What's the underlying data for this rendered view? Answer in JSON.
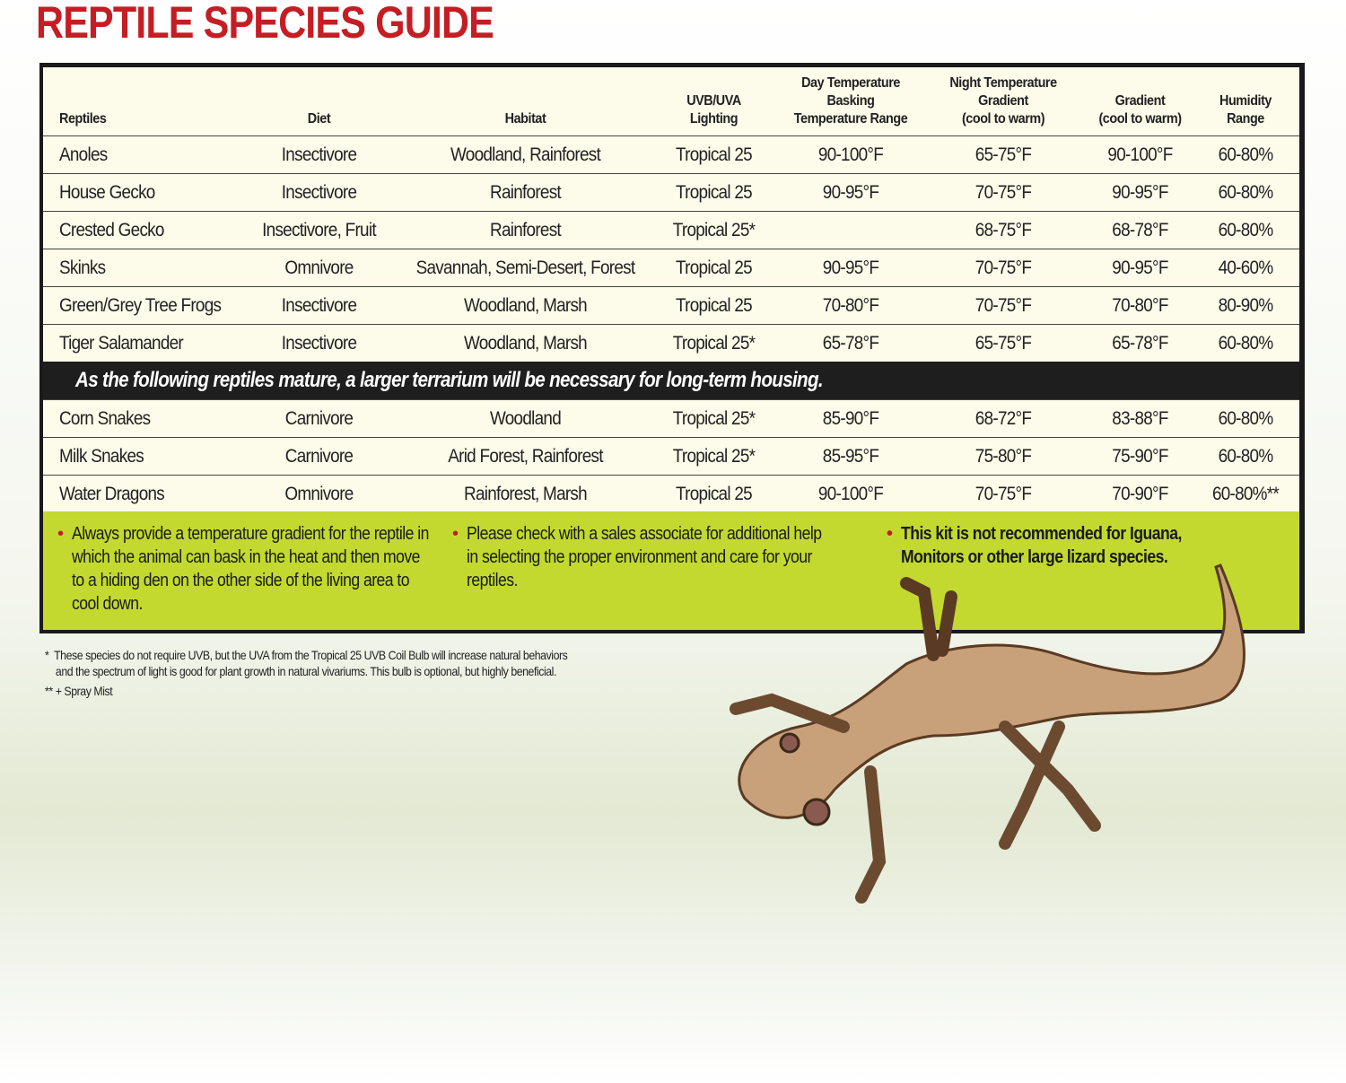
{
  "title": "REPTILE SPECIES GUIDE",
  "headers": [
    "Reptiles",
    "Diet",
    "Habitat",
    "UVB/UVA Lighting",
    "Day Temperature Basking Temperature Range",
    "Night Temperature Gradient (cool to warm)",
    "Gradient (cool to warm)",
    "Humidity Range"
  ],
  "header_lines": [
    [
      "Reptiles"
    ],
    [
      "Diet"
    ],
    [
      "Habitat"
    ],
    [
      "UVB/UVA",
      "Lighting"
    ],
    [
      "Day Temperature",
      "Basking",
      "Temperature Range"
    ],
    [
      "Night Temperature",
      "Gradient",
      "(cool to warm)"
    ],
    [
      "Gradient",
      "(cool to warm)"
    ],
    [
      "Humidity",
      "Range"
    ]
  ],
  "rows": [
    [
      "Anoles",
      "Insectivore",
      "Woodland, Rainforest",
      "Tropical 25",
      "90-100°F",
      "65-75°F",
      "90-100°F",
      "60-80%"
    ],
    [
      "House Gecko",
      "Insectivore",
      "Rainforest",
      "Tropical 25",
      "90-95°F",
      "70-75°F",
      "90-95°F",
      "60-80%"
    ],
    [
      "Crested Gecko",
      "Insectivore, Fruit",
      "Rainforest",
      "Tropical 25*",
      "",
      "68-75°F",
      "68-78°F",
      "60-80%"
    ],
    [
      "Skinks",
      "Omnivore",
      "Savannah, Semi-Desert, Forest",
      "Tropical 25",
      "90-95°F",
      "70-75°F",
      "90-95°F",
      "40-60%"
    ],
    [
      "Green/Grey Tree Frogs",
      "Insectivore",
      "Woodland, Marsh",
      "Tropical 25",
      "70-80°F",
      "70-75°F",
      "70-80°F",
      "80-90%"
    ],
    [
      "Tiger Salamander",
      "Insectivore",
      "Woodland, Marsh",
      "Tropical 25*",
      "65-78°F",
      "65-75°F",
      "65-78°F",
      "60-80%"
    ]
  ],
  "banner": "As the following reptiles mature, a larger terrarium will be necessary for long-term housing.",
  "rows2": [
    [
      "Corn Snakes",
      "Carnivore",
      "Woodland",
      "Tropical 25*",
      "85-90°F",
      "68-72°F",
      "83-88°F",
      "60-80%"
    ],
    [
      "Milk Snakes",
      "Carnivore",
      "Arid Forest, Rainforest",
      "Tropical 25*",
      "85-95°F",
      "75-80°F",
      "75-90°F",
      "60-80%"
    ],
    [
      "Water Dragons",
      "Omnivore",
      "Rainforest, Marsh",
      "Tropical 25",
      "90-100°F",
      "70-75°F",
      "70-90°F",
      "60-80%**"
    ]
  ],
  "notes": [
    "Always provide a temperature gradient for the reptile in which the animal can bask in the heat and then move to a hiding den on the other side of the living area to cool down.",
    "Please check with a sales associate for additional help in selecting the proper environment and care for your reptiles.",
    "This kit is not recommended for Iguana, Monitors or other large lizard species."
  ],
  "bullet": "•",
  "footnotes": [
    "*  These species do not require UVB, but the UVA from the Tropical 25 UVB Coil Bulb will increase natural behaviors",
    "    and the spectrum of light is good for plant growth in natural vivariums. This bulb is optional, but highly beneficial.",
    "** + Spray Mist"
  ],
  "colors": {
    "title": "#c41e24",
    "green_panel": "#c3d930",
    "banner": "#1e1e1e",
    "table_bg": "#fdfbea"
  },
  "image": "crested-gecko"
}
